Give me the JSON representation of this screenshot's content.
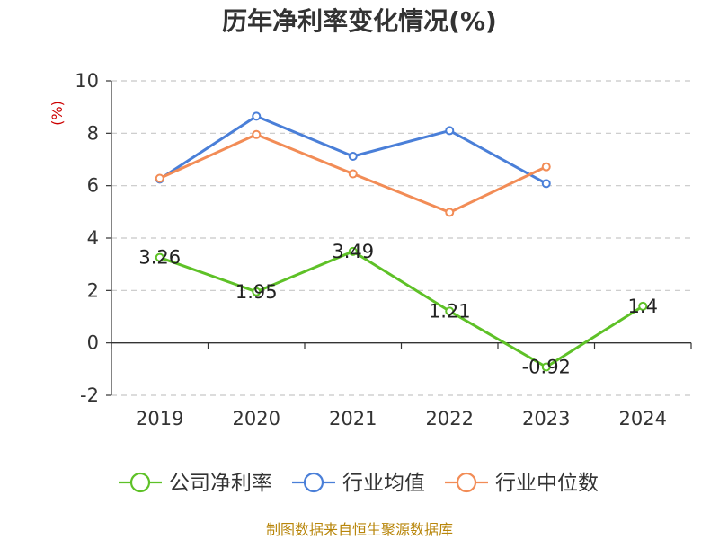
{
  "chart_data": {
    "type": "line",
    "title": "历年净利率变化情况(%)",
    "ylabel": "(%)",
    "xlabel": "",
    "categories": [
      "2019",
      "2020",
      "2021",
      "2022",
      "2023",
      "2024"
    ],
    "ylim": [
      -2,
      10
    ],
    "yticks": [
      -2,
      0,
      2,
      4,
      6,
      8,
      10
    ],
    "grid": true,
    "legend_position": "bottom",
    "series": [
      {
        "name": "公司净利率",
        "color": "#5ec127",
        "values": [
          3.26,
          1.95,
          3.49,
          1.21,
          -0.92,
          1.4
        ],
        "labels": [
          "3.26",
          "1.95",
          "3.49",
          "1.21",
          "-0.92",
          "1.4"
        ],
        "show_labels": true
      },
      {
        "name": "行业均值",
        "color": "#4a7fd8",
        "values": [
          6.25,
          8.65,
          7.12,
          8.1,
          6.08,
          null
        ],
        "show_labels": false
      },
      {
        "name": "行业中位数",
        "color": "#f28c56",
        "values": [
          6.28,
          7.95,
          6.45,
          4.98,
          6.72,
          null
        ],
        "show_labels": false
      }
    ],
    "source": "制图数据来自恒生聚源数据库"
  }
}
